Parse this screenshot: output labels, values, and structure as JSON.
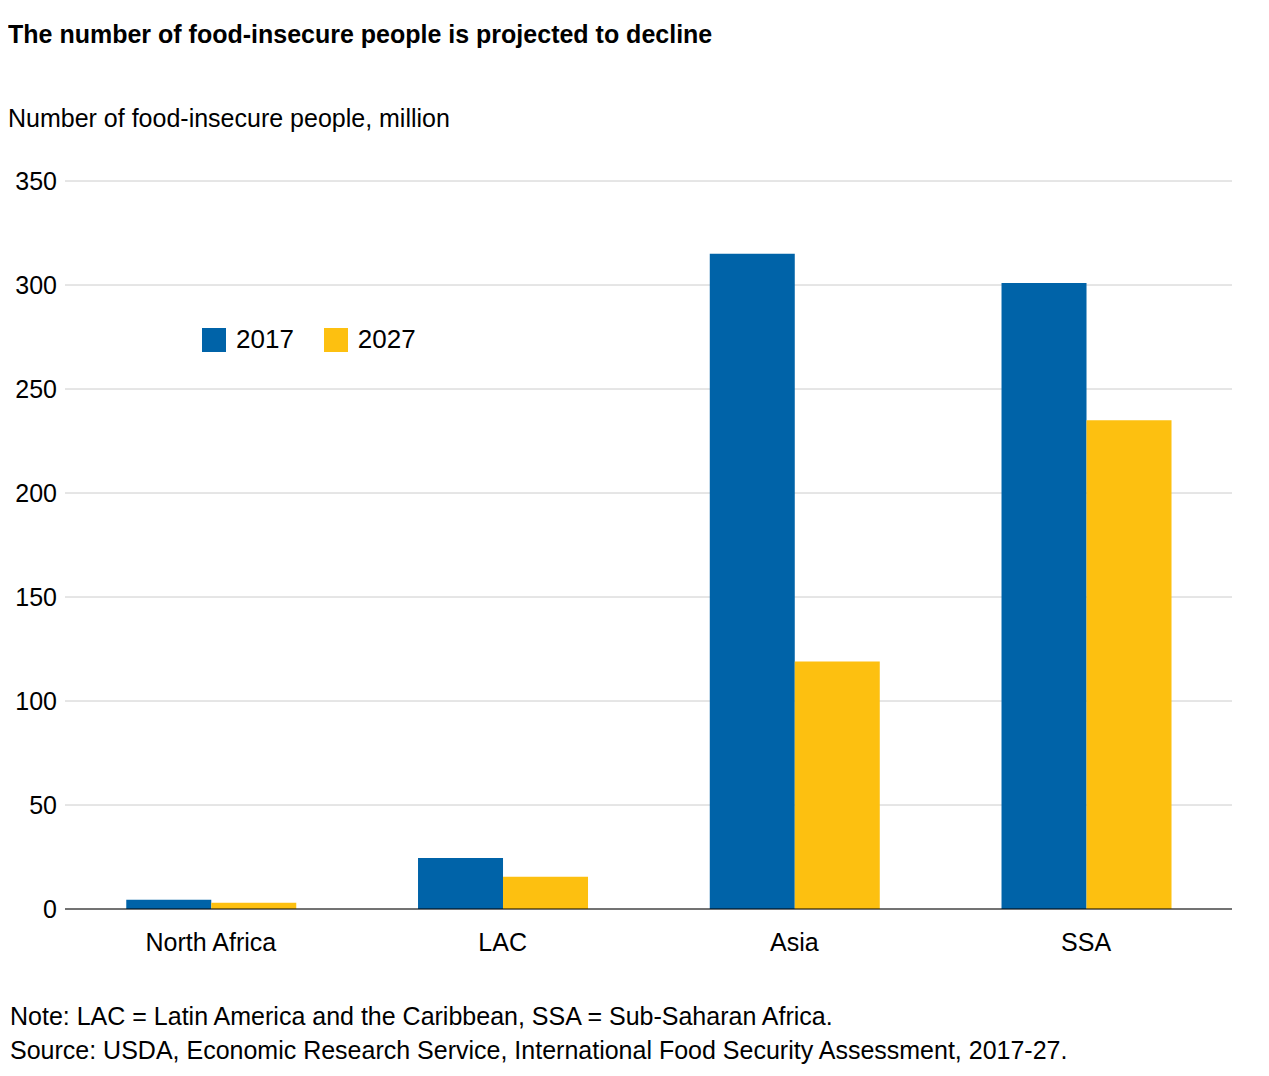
{
  "chart_data": {
    "type": "bar",
    "title": "The number of food-insecure people is projected to decline",
    "subtitle": "Number of food-insecure people, million",
    "categories": [
      "North Africa",
      "LAC",
      "Asia",
      "SSA"
    ],
    "series": [
      {
        "name": "2017",
        "color": "#0063a8",
        "values": [
          4.5,
          24.5,
          315,
          301
        ]
      },
      {
        "name": "2027",
        "color": "#fdc010",
        "values": [
          3,
          15.5,
          119,
          235
        ]
      }
    ],
    "ylim": [
      0,
      350
    ],
    "yticks": [
      0,
      50,
      100,
      150,
      200,
      250,
      300,
      350
    ],
    "grid": true,
    "legend": "upper left",
    "notes": [
      "Note: LAC = Latin America and the Caribbean, SSA = Sub-Saharan Africa.",
      "Source: USDA, Economic Research Service, International Food Security Assessment, 2017-27."
    ]
  }
}
